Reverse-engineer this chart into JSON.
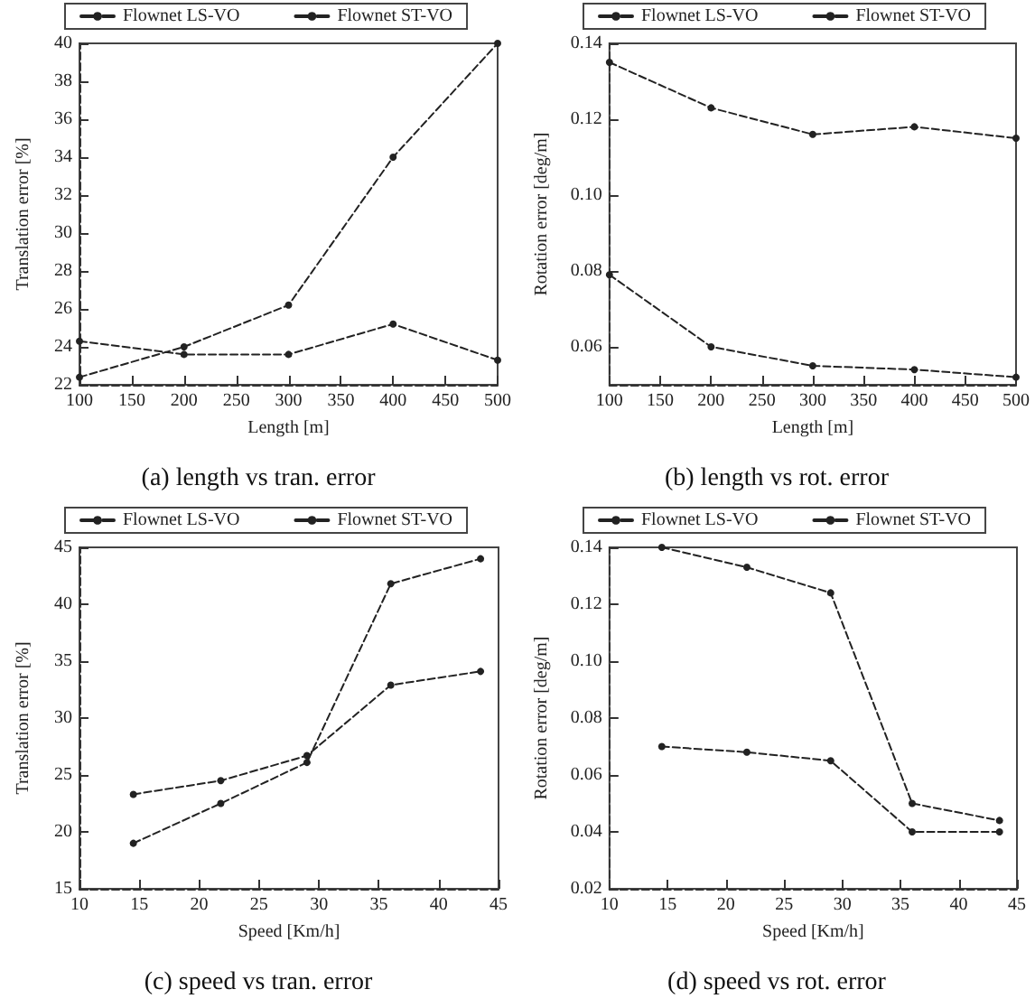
{
  "chart_data": [
    {
      "type": "line",
      "title": "(a) length vs tran. error",
      "xlabel": "Length [m]",
      "ylabel": "Translation error [%]",
      "x": [
        100,
        200,
        300,
        400,
        500
      ],
      "xlim": [
        100,
        500
      ],
      "xticks": [
        100,
        150,
        200,
        250,
        300,
        350,
        400,
        450,
        500
      ],
      "ylim": [
        22,
        40
      ],
      "yticks": [
        22,
        24,
        26,
        28,
        30,
        32,
        34,
        36,
        38,
        40
      ],
      "legend": "top",
      "grid": false,
      "marker": "circle",
      "line_style": "dashed",
      "series": [
        {
          "name": "Flownet LS-VO",
          "color": "#222222",
          "values": [
            24.3,
            23.6,
            23.6,
            25.2,
            23.3
          ]
        },
        {
          "name": "Flownet ST-VO",
          "color": "#222222",
          "values": [
            22.4,
            24.0,
            26.2,
            34.0,
            40.0
          ]
        }
      ]
    },
    {
      "type": "line",
      "title": "(b) length vs rot. error",
      "xlabel": "Length [m]",
      "ylabel": "Rotation error [deg/m]",
      "x": [
        100,
        200,
        300,
        400,
        500
      ],
      "xlim": [
        100,
        500
      ],
      "xticks": [
        100,
        150,
        200,
        250,
        300,
        350,
        400,
        450,
        500
      ],
      "ylim": [
        0.05,
        0.14
      ],
      "yticks": [
        0.06,
        0.08,
        {
          "value": 0.1,
          "label": "0.10"
        },
        0.12,
        0.14
      ],
      "legend": "top",
      "grid": false,
      "marker": "circle",
      "line_style": "dashed",
      "series": [
        {
          "name": "Flownet LS-VO",
          "color": "#222222",
          "values": [
            0.079,
            0.06,
            0.055,
            0.054,
            0.052
          ]
        },
        {
          "name": "Flownet ST-VO",
          "color": "#222222",
          "values": [
            0.135,
            0.123,
            0.116,
            0.118,
            0.115
          ]
        }
      ]
    },
    {
      "type": "line",
      "title": "(c) speed vs tran. error",
      "xlabel": "Speed [Km/h]",
      "ylabel": "Translation error [%]",
      "x": [
        14.5,
        21.8,
        29,
        36,
        43.5
      ],
      "xlim": [
        10,
        45
      ],
      "xticks": [
        10,
        15,
        20,
        25,
        30,
        35,
        40,
        45
      ],
      "ylim": [
        15,
        45
      ],
      "yticks": [
        15,
        20,
        25,
        30,
        35,
        40,
        45
      ],
      "legend": "top",
      "grid": false,
      "marker": "circle",
      "line_style": "dashed",
      "series": [
        {
          "name": "Flownet LS-VO",
          "color": "#222222",
          "values": [
            23.3,
            24.5,
            26.7,
            32.9,
            34.1
          ]
        },
        {
          "name": "Flownet ST-VO",
          "color": "#222222",
          "values": [
            19.0,
            22.5,
            26.1,
            41.8,
            44.0
          ]
        }
      ]
    },
    {
      "type": "line",
      "title": "(d) speed vs rot. error",
      "xlabel": "Speed [Km/h]",
      "ylabel": "Rotation error [deg/m]",
      "x": [
        14.5,
        21.8,
        29,
        36,
        43.5
      ],
      "xlim": [
        10,
        45
      ],
      "xticks": [
        10,
        15,
        20,
        25,
        30,
        35,
        40,
        45
      ],
      "ylim": [
        0.02,
        0.14
      ],
      "yticks": [
        0.02,
        0.04,
        0.06,
        0.08,
        {
          "value": 0.1,
          "label": "0.10"
        },
        0.12,
        0.14
      ],
      "legend": "top",
      "grid": false,
      "marker": "circle",
      "line_style": "dashed",
      "series": [
        {
          "name": "Flownet LS-VO",
          "color": "#222222",
          "values": [
            0.07,
            0.068,
            0.065,
            0.04,
            0.04
          ]
        },
        {
          "name": "Flownet ST-VO",
          "color": "#222222",
          "values": [
            0.14,
            0.133,
            0.124,
            0.05,
            0.044
          ]
        }
      ]
    }
  ]
}
